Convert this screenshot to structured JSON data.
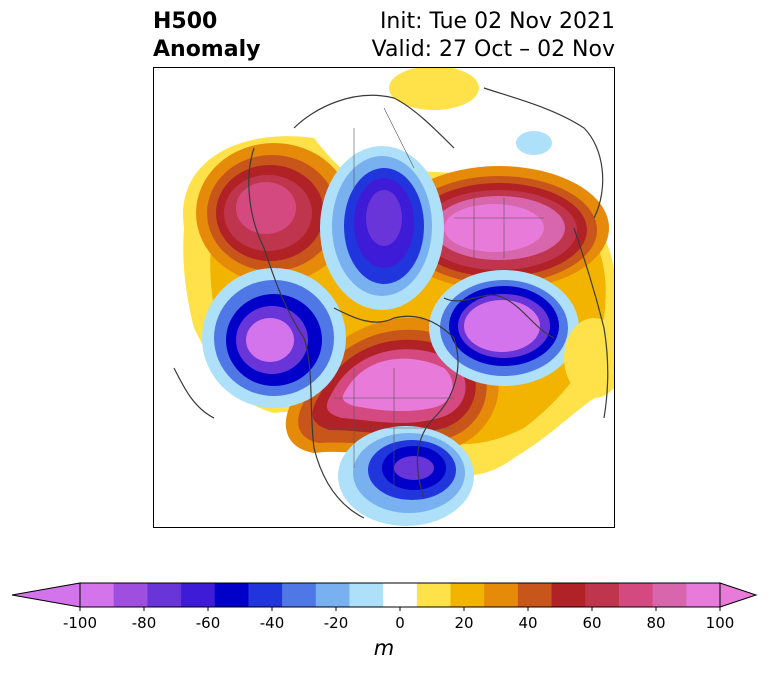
{
  "title": {
    "left_line1": "H500",
    "left_line2": "Anomaly",
    "right_line1": "Init: Tue 02 Nov 2021",
    "right_line2": "Valid: 27 Oct – 02 Nov"
  },
  "colorbar": {
    "unit": "m",
    "ticks": [
      "-100",
      "-80",
      "-60",
      "-40",
      "-20",
      "0",
      "20",
      "40",
      "60",
      "80",
      "100"
    ],
    "levels": [
      -100,
      -90,
      -80,
      -70,
      -60,
      -50,
      -40,
      -30,
      -20,
      -10,
      10,
      20,
      30,
      40,
      50,
      60,
      70,
      80,
      90,
      100
    ],
    "colors": [
      "#d474ec",
      "#9e4fe0",
      "#6a35d8",
      "#3e1bd6",
      "#0000c8",
      "#2036dc",
      "#4f78e6",
      "#78b0f0",
      "#aee0fa",
      "#ffffff",
      "#ffe14a",
      "#f2b400",
      "#e68a0a",
      "#c8561a",
      "#b02226",
      "#c0354e",
      "#d44a80",
      "#d866ac",
      "#e87ada"
    ],
    "extend_low_color": "#d474ec",
    "extend_high_color": "#e87ada"
  }
}
